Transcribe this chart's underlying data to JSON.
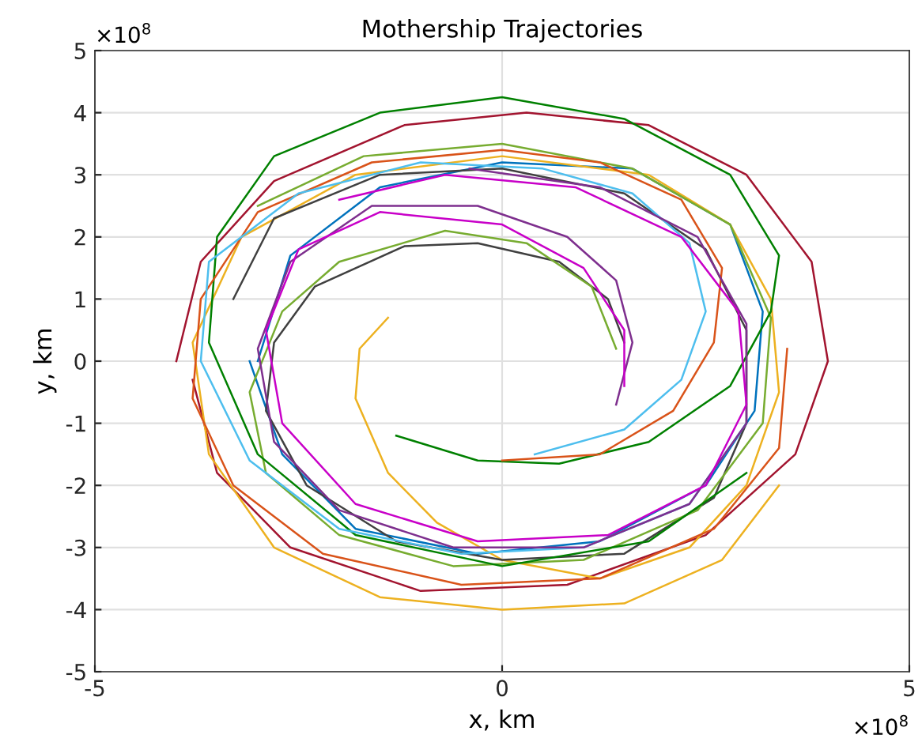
{
  "chart_data": {
    "type": "line",
    "title": "Mothership Trajectories",
    "xlabel": "x, km",
    "ylabel": "y, km",
    "annotations": [
      "×10$^{8}$",
      "×10$^{8}$"
    ],
    "xlim": [
      -5,
      5
    ],
    "ylim": [
      -5,
      5
    ],
    "xticks": [
      -5,
      0,
      5
    ],
    "yticks": [
      -5,
      -4,
      -3,
      -2,
      -1,
      0,
      1,
      2,
      3,
      4,
      5
    ],
    "grid": true,
    "line_style": "solid",
    "series": [
      {
        "color": "#a2142f",
        "x": [
          -4.0,
          -3.7,
          -2.8,
          -1.2,
          0.3,
          1.8,
          3.0,
          3.8,
          4.0,
          3.6,
          2.5,
          0.8,
          -1.0,
          -2.6,
          -3.5,
          -3.8
        ],
        "values": [
          0,
          1.6,
          2.9,
          3.8,
          4.0,
          3.8,
          3.0,
          1.6,
          0,
          -1.5,
          -2.8,
          -3.6,
          -3.7,
          -3.0,
          -1.8,
          -0.3
        ]
      },
      {
        "color": "#0072bd",
        "x": [
          -3.0,
          -2.6,
          -1.5,
          0,
          1.6,
          2.8,
          3.2,
          3.1,
          2.5,
          1.2,
          -0.3,
          -1.8,
          -2.7,
          -3.1
        ],
        "values": [
          0,
          1.7,
          2.8,
          3.2,
          3.1,
          2.2,
          0.8,
          -0.8,
          -2.0,
          -2.9,
          -3.1,
          -2.7,
          -1.5,
          0
        ]
      },
      {
        "color": "#edb120",
        "x": [
          -1.4,
          -1.75,
          -1.8,
          -1.4,
          -0.8,
          0,
          1.2,
          2.3,
          3.0,
          3.4,
          3.3,
          2.8,
          1.8,
          0,
          -1.8,
          -3.2,
          -3.8,
          -3.6,
          -2.8,
          -1.5,
          0,
          1.5,
          2.7,
          3.4
        ],
        "values": [
          0.7,
          0.2,
          -0.6,
          -1.8,
          -2.6,
          -3.2,
          -3.5,
          -3.0,
          -2.0,
          -0.5,
          1.0,
          2.2,
          3.0,
          3.3,
          3.0,
          2.0,
          0.3,
          -1.5,
          -3.0,
          -3.8,
          -4.0,
          -3.9,
          -3.2,
          -2.0
        ]
      },
      {
        "color": "#404040",
        "x": [
          1.5,
          1.3,
          0.7,
          -0.3,
          -1.2,
          -2.3,
          -2.8,
          -2.9,
          -2.4,
          -1.3,
          0,
          1.5,
          2.6,
          3.0,
          3.0,
          2.5,
          1.5,
          0,
          -1.5,
          -2.8,
          -3.3
        ],
        "values": [
          0.3,
          1.0,
          1.6,
          1.9,
          1.85,
          1.2,
          0.3,
          -0.8,
          -2.0,
          -2.9,
          -3.2,
          -3.1,
          -2.2,
          -1.0,
          0.5,
          1.8,
          2.7,
          3.1,
          3.0,
          2.3,
          1.0
        ]
      },
      {
        "color": "#77ac30",
        "x": [
          1.4,
          1.1,
          0.3,
          -0.7,
          -2.0,
          -2.7,
          -3.1,
          -2.9,
          -2.0,
          -0.6,
          1.0,
          2.4,
          3.2,
          3.3,
          2.8,
          1.6,
          0,
          -1.7,
          -3.0
        ],
        "values": [
          0.2,
          1.2,
          1.9,
          2.1,
          1.6,
          0.8,
          -0.5,
          -1.8,
          -2.8,
          -3.3,
          -3.2,
          -2.4,
          -1.0,
          0.7,
          2.2,
          3.1,
          3.5,
          3.3,
          2.5
        ]
      },
      {
        "color": "#008000",
        "x": [
          -1.3,
          -0.3,
          0.7,
          1.8,
          2.8,
          3.3,
          3.4,
          2.8,
          1.5,
          0,
          -1.5,
          -2.8,
          -3.5,
          -3.6,
          -3.0,
          -1.8,
          0,
          1.8,
          3.0
        ],
        "values": [
          -1.2,
          -1.6,
          -1.65,
          -1.3,
          -0.4,
          0.8,
          1.7,
          3.0,
          3.9,
          4.25,
          4.0,
          3.3,
          2.0,
          0.3,
          -1.5,
          -2.8,
          -3.3,
          -2.9,
          -1.8
        ]
      },
      {
        "color": "#d95319",
        "x": [
          0,
          1.2,
          2.1,
          2.6,
          2.7,
          2.2,
          1.2,
          0,
          -1.6,
          -3.0,
          -3.7,
          -3.8,
          -3.3,
          -2.2,
          -0.5,
          1.2,
          2.6,
          3.4,
          3.5
        ],
        "values": [
          -1.6,
          -1.5,
          -0.8,
          0.3,
          1.5,
          2.6,
          3.2,
          3.4,
          3.2,
          2.4,
          1.0,
          -0.6,
          -2.0,
          -3.1,
          -3.6,
          -3.5,
          -2.7,
          -1.4,
          0.2
        ]
      },
      {
        "color": "#4dbeee",
        "x": [
          0.4,
          1.5,
          2.2,
          2.5,
          2.3,
          1.6,
          0.5,
          -1.0,
          -2.5,
          -3.6,
          -3.7,
          -3.1,
          -2.0,
          -0.5,
          1.0,
          2.3,
          3.0
        ],
        "values": [
          -1.5,
          -1.1,
          -0.3,
          0.8,
          1.9,
          2.7,
          3.1,
          3.2,
          2.7,
          1.6,
          0,
          -1.6,
          -2.7,
          -3.1,
          -3.0,
          -2.3,
          -1.0
        ]
      },
      {
        "color": "#7e2f8e",
        "x": [
          1.4,
          1.6,
          1.4,
          0.8,
          -0.3,
          -1.6,
          -2.6,
          -3.0,
          -2.8,
          -2.0,
          -0.6,
          1.0,
          2.3,
          3.0,
          3.0,
          2.4,
          1.2,
          -0.4
        ],
        "values": [
          -0.7,
          0.3,
          1.3,
          2.0,
          2.5,
          2.5,
          1.6,
          0.2,
          -1.3,
          -2.4,
          -3.0,
          -3.0,
          -2.3,
          -1.0,
          0.6,
          2.0,
          2.8,
          3.1
        ]
      },
      {
        "color": "#c800c8",
        "x": [
          1.5,
          1.5,
          1.0,
          0,
          -1.5,
          -2.5,
          -2.9,
          -2.7,
          -1.8,
          -0.3,
          1.3,
          2.5,
          3.0,
          2.9,
          2.2,
          0.9,
          -0.7,
          -2.0
        ],
        "values": [
          -0.4,
          0.5,
          1.5,
          2.2,
          2.4,
          1.8,
          0.5,
          -1.0,
          -2.3,
          -2.9,
          -2.8,
          -2.0,
          -0.7,
          0.8,
          2.0,
          2.8,
          3.0,
          2.6
        ]
      }
    ]
  }
}
